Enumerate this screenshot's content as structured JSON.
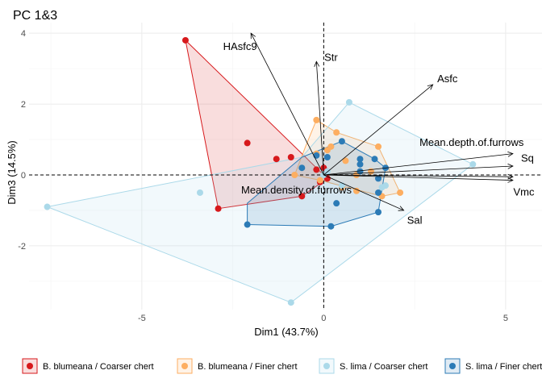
{
  "chart_data": {
    "type": "scatter",
    "subtype": "PCA biplot",
    "title": "PC 1&3",
    "xlabel": "Dim1 (43.7%)",
    "ylabel": "Dim3 (14.5%)",
    "xlim": [
      -8.1,
      6.0
    ],
    "ylim": [
      -3.8,
      4.3
    ],
    "xticks": [
      -5,
      0,
      5
    ],
    "yticks": [
      -2,
      0,
      2,
      4
    ],
    "grid": true,
    "legend_position": "bottom",
    "series": [
      {
        "name": "B. blumeana / Coarser chert",
        "color": "#d7191c",
        "points": [
          [
            -3.8,
            3.8
          ],
          [
            -2.1,
            0.9
          ],
          [
            -1.3,
            0.45
          ],
          [
            -0.9,
            0.5
          ],
          [
            -0.6,
            -0.6
          ],
          [
            -2.9,
            -0.95
          ],
          [
            -0.2,
            0.15
          ],
          [
            -0.1,
            -0.2
          ],
          [
            0.0,
            0.2
          ],
          [
            0.1,
            -0.1
          ]
        ],
        "hull": [
          [
            -3.8,
            3.8
          ],
          [
            0.1,
            -0.1
          ],
          [
            -0.6,
            -0.6
          ],
          [
            -2.9,
            -0.95
          ]
        ]
      },
      {
        "name": "B. blumeana / Finer chert",
        "color": "#fdae61",
        "points": [
          [
            -0.8,
            0.0
          ],
          [
            -0.2,
            0.6
          ],
          [
            0.1,
            0.7
          ],
          [
            0.2,
            0.8
          ],
          [
            0.35,
            1.2
          ],
          [
            -0.2,
            1.55
          ],
          [
            1.5,
            0.8
          ],
          [
            1.6,
            -0.6
          ],
          [
            2.1,
            -0.5
          ],
          [
            1.3,
            0.1
          ],
          [
            0.6,
            0.4
          ],
          [
            0.9,
            0.0
          ],
          [
            0.5,
            -0.35
          ],
          [
            0.9,
            -0.45
          ],
          [
            -0.1,
            -0.15
          ]
        ],
        "hull": [
          [
            -0.2,
            1.55
          ],
          [
            0.35,
            1.2
          ],
          [
            1.5,
            0.8
          ],
          [
            2.1,
            -0.5
          ],
          [
            1.6,
            -0.6
          ],
          [
            -0.1,
            -0.15
          ],
          [
            -0.8,
            0.0
          ],
          [
            -0.5,
            0.8
          ]
        ]
      },
      {
        "name": "S. lima / Coarser chert",
        "color": "#abd9e9",
        "points": [
          [
            0.7,
            2.05
          ],
          [
            4.1,
            0.3
          ],
          [
            -7.6,
            -0.9
          ],
          [
            -3.4,
            -0.5
          ],
          [
            -0.9,
            -3.6
          ],
          [
            0.1,
            0.1
          ],
          [
            0.5,
            -0.3
          ],
          [
            1.6,
            -0.35
          ],
          [
            1.7,
            -0.3
          ],
          [
            0.0,
            0.0
          ]
        ],
        "hull": [
          [
            0.7,
            2.05
          ],
          [
            4.1,
            0.3
          ],
          [
            -0.9,
            -3.6
          ],
          [
            -7.6,
            -0.9
          ],
          [
            -0.6,
            0.5
          ]
        ]
      },
      {
        "name": "S. lima / Finer chert",
        "color": "#2c7bb6",
        "points": [
          [
            -0.2,
            0.55
          ],
          [
            0.1,
            0.5
          ],
          [
            0.5,
            0.95
          ],
          [
            1.0,
            0.45
          ],
          [
            1.4,
            0.45
          ],
          [
            1.0,
            0.3
          ],
          [
            1.0,
            0.1
          ],
          [
            1.7,
            0.2
          ],
          [
            1.5,
            -0.1
          ],
          [
            1.5,
            -0.5
          ],
          [
            1.5,
            -1.05
          ],
          [
            -2.1,
            -1.4
          ],
          [
            0.2,
            -1.45
          ],
          [
            0.35,
            -0.8
          ],
          [
            -0.6,
            0.2
          ]
        ],
        "hull": [
          [
            -0.6,
            0.5
          ],
          [
            0.5,
            0.95
          ],
          [
            1.4,
            0.45
          ],
          [
            1.7,
            0.2
          ],
          [
            1.5,
            -1.05
          ],
          [
            0.2,
            -1.45
          ],
          [
            -2.1,
            -1.4
          ],
          [
            -2.1,
            -0.8
          ]
        ]
      }
    ],
    "loadings": [
      {
        "label": "HAsfc9",
        "x": -2.0,
        "y": 4.0
      },
      {
        "label": "Str",
        "x": -0.2,
        "y": 3.2
      },
      {
        "label": "Asfc",
        "x": 3.0,
        "y": 2.55
      },
      {
        "label": "Mean.depth.of.furrows",
        "x": 5.2,
        "y": 0.6
      },
      {
        "label": "Sq",
        "x": 5.2,
        "y": 0.25
      },
      {
        "label": "Vmc",
        "x": 5.2,
        "y": -0.15
      },
      {
        "label": "Mean.density.of.furrows",
        "x": 5.2,
        "y": -0.05
      },
      {
        "label": "Sal",
        "x": 2.2,
        "y": -1.0
      }
    ]
  }
}
